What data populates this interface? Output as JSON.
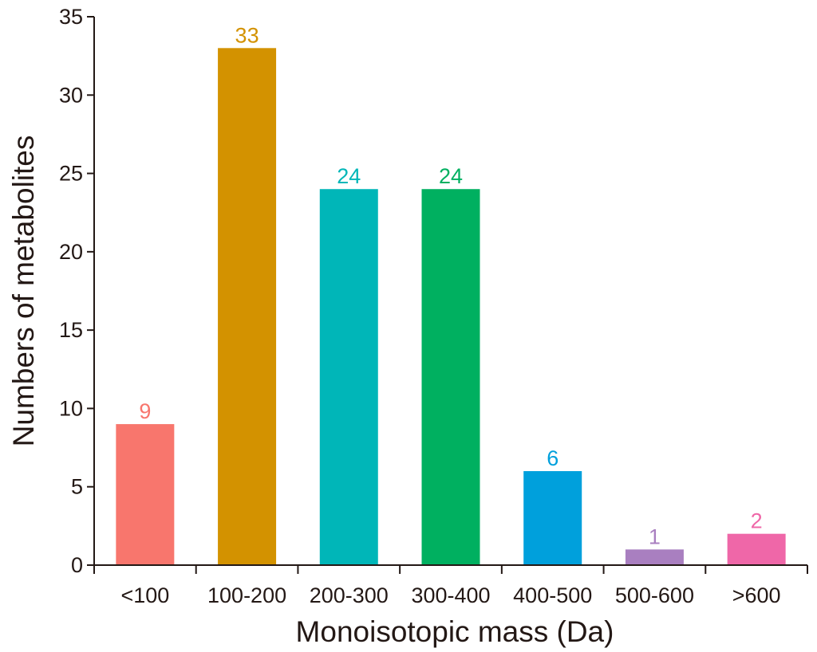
{
  "chart_data": {
    "type": "bar",
    "categories": [
      "<100",
      "100-200",
      "200-300",
      "300-400",
      "400-500",
      "500-600",
      ">600"
    ],
    "values": [
      9,
      33,
      24,
      24,
      6,
      1,
      2
    ],
    "colors": [
      "#F8766D",
      "#D39200",
      "#00B6B8",
      "#00B060",
      "#00A0DC",
      "#A97FC0",
      "#EF67A8"
    ],
    "xlabel": "Monoisotopic mass (Da)",
    "ylabel": "Numbers of metabolites",
    "ylim": [
      0,
      35
    ],
    "yticks": [
      0,
      5,
      10,
      15,
      20,
      25,
      30,
      35
    ],
    "ytick_labels": [
      "0",
      "5",
      "10",
      "15",
      "20",
      "25",
      "30",
      "35"
    ],
    "data_labels": [
      "9",
      "33",
      "24",
      "24",
      "6",
      "1",
      "2"
    ],
    "grid": false,
    "legend": "none"
  }
}
